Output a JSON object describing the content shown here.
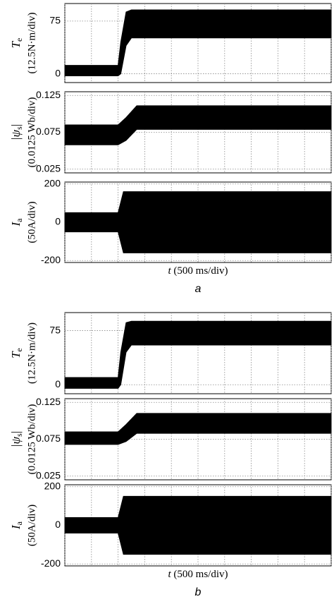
{
  "chart_data": [
    {
      "type": "band",
      "symbol": "T",
      "subscript": "e",
      "symbol_end": "",
      "unit": "(12.5N·m/div)",
      "x": [
        0,
        1000,
        1050,
        1150,
        1250,
        5000
      ],
      "high": [
        12,
        12,
        45,
        88,
        91,
        91
      ],
      "low": [
        -3,
        -3,
        0,
        40,
        51,
        51
      ],
      "xlim": [
        0,
        5000
      ],
      "xticks": [
        0,
        500,
        1000,
        1500,
        2000,
        2500,
        3000,
        3500,
        4000,
        4500,
        5000
      ],
      "ylim": [
        -12.5,
        100
      ],
      "yticks": [
        0,
        75
      ],
      "grid": true,
      "color": "#000000"
    },
    {
      "type": "band",
      "symbol": "|ψ",
      "subscript": "s",
      "symbol_end": "|",
      "unit": "(0.0125 Wb/div)",
      "x": [
        0,
        1000,
        1150,
        1350,
        5000
      ],
      "high": [
        0.085,
        0.085,
        0.095,
        0.111,
        0.111
      ],
      "low": [
        0.058,
        0.058,
        0.064,
        0.079,
        0.079
      ],
      "xlim": [
        0,
        5000
      ],
      "xticks": [
        0,
        500,
        1000,
        1500,
        2000,
        2500,
        3000,
        3500,
        4000,
        4500,
        5000
      ],
      "ylim": [
        0.02,
        0.13
      ],
      "yticks": [
        0.025,
        0.075,
        0.125
      ],
      "grid": true,
      "color": "#000000"
    },
    {
      "type": "band",
      "symbol": "I",
      "subscript": "a",
      "symbol_end": "",
      "unit": "(50A/div)",
      "x": [
        0,
        1000,
        1100,
        5000
      ],
      "high": [
        50,
        50,
        160,
        160
      ],
      "low": [
        -50,
        -50,
        -160,
        -160
      ],
      "xlim": [
        0,
        5000
      ],
      "xticks": [
        0,
        500,
        1000,
        1500,
        2000,
        2500,
        3000,
        3500,
        4000,
        4500,
        5000
      ],
      "ylim": [
        -210,
        210
      ],
      "yticks": [
        -200,
        0,
        200
      ],
      "grid": true,
      "color": "#000000",
      "xlabel_var": "t",
      "xlabel_unit": "(500 ms/div)",
      "caption": "a"
    },
    {
      "type": "band",
      "symbol": "T",
      "subscript": "e",
      "symbol_end": "",
      "unit": "(12.5N·m/div)",
      "x": [
        0,
        1000,
        1050,
        1150,
        1250,
        5000
      ],
      "high": [
        10,
        10,
        45,
        86,
        88,
        88
      ],
      "low": [
        -5,
        -5,
        0,
        45,
        55,
        55
      ],
      "xlim": [
        0,
        5000
      ],
      "xticks": [
        0,
        500,
        1000,
        1500,
        2000,
        2500,
        3000,
        3500,
        4000,
        4500,
        5000
      ],
      "ylim": [
        -12.5,
        100
      ],
      "yticks": [
        0,
        75
      ],
      "grid": true,
      "color": "#000000"
    },
    {
      "type": "band",
      "symbol": "|ψ",
      "subscript": "s",
      "symbol_end": "|",
      "unit": "(0.0125 Wb/div)",
      "x": [
        0,
        1000,
        1150,
        1350,
        5000
      ],
      "high": [
        0.085,
        0.085,
        0.095,
        0.11,
        0.11
      ],
      "low": [
        0.068,
        0.068,
        0.072,
        0.083,
        0.083
      ],
      "xlim": [
        0,
        5000
      ],
      "xticks": [
        0,
        500,
        1000,
        1500,
        2000,
        2500,
        3000,
        3500,
        4000,
        4500,
        5000
      ],
      "ylim": [
        0.02,
        0.13
      ],
      "yticks": [
        0.025,
        0.075,
        0.125
      ],
      "grid": true,
      "color": "#000000"
    },
    {
      "type": "band",
      "symbol": "I",
      "subscript": "a",
      "symbol_end": "",
      "unit": "(50A/div)",
      "x": [
        0,
        1000,
        1100,
        5000
      ],
      "high": [
        40,
        40,
        150,
        150
      ],
      "low": [
        -40,
        -40,
        -150,
        -150
      ],
      "xlim": [
        0,
        5000
      ],
      "xticks": [
        0,
        500,
        1000,
        1500,
        2000,
        2500,
        3000,
        3500,
        4000,
        4500,
        5000
      ],
      "ylim": [
        -210,
        210
      ],
      "yticks": [
        -200,
        0,
        200
      ],
      "grid": true,
      "color": "#000000",
      "xlabel_var": "t",
      "xlabel_unit": "(500 ms/div)",
      "caption": "b"
    }
  ]
}
